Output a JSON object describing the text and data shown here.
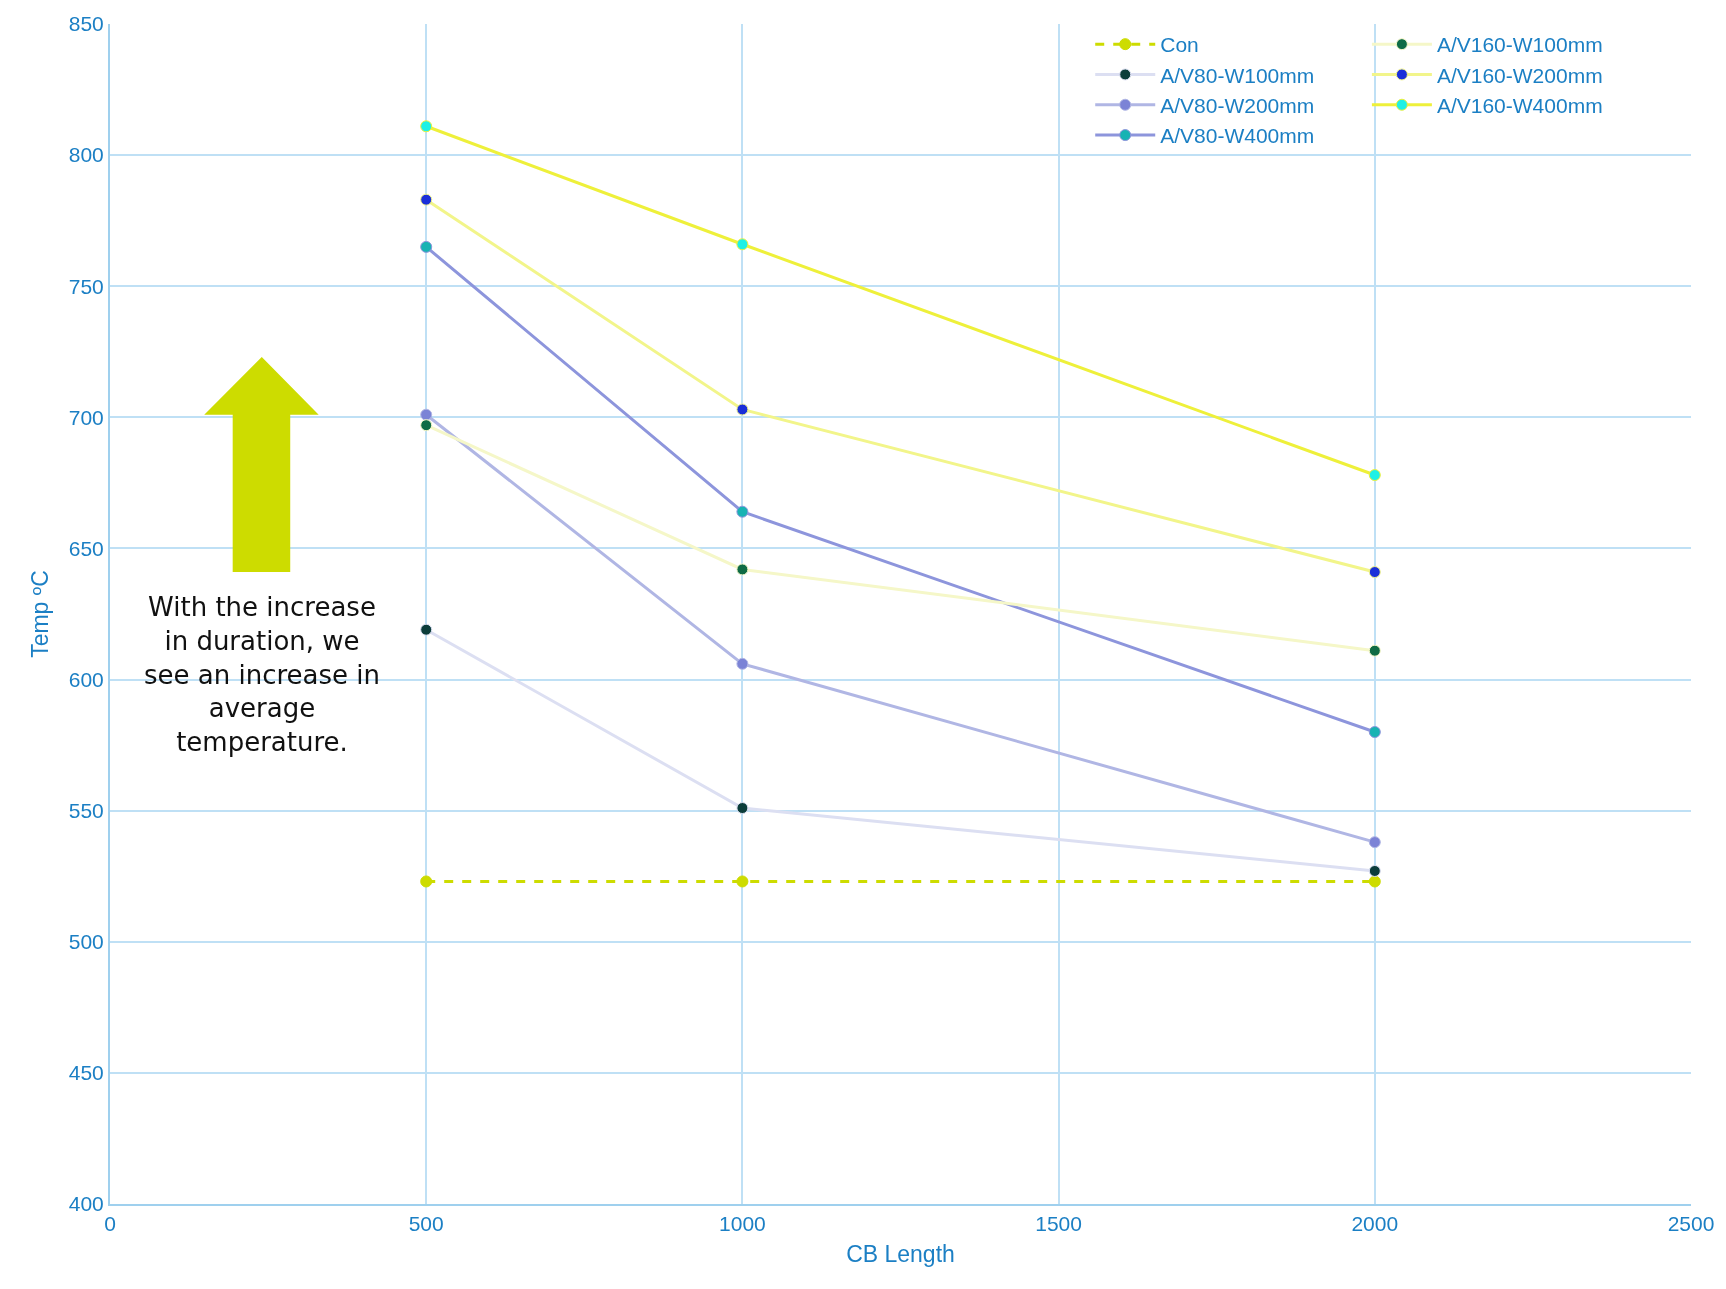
{
  "chart_data": {
    "type": "line",
    "xlabel": "CB Length",
    "ylabel": "Temp ºC",
    "xlim": [
      0,
      2500
    ],
    "xticks": [
      0,
      500,
      1000,
      1500,
      2000,
      2500
    ],
    "ylim": [
      400,
      850
    ],
    "yticks": [
      400,
      450,
      500,
      550,
      600,
      650,
      700,
      750,
      800,
      850
    ],
    "grid": true,
    "legend": "top right",
    "marker": "circle",
    "annotations": [
      "With the increase in duration, we see an increase in average temperature."
    ],
    "x": [
      500,
      1000,
      2000
    ],
    "series": [
      {
        "name": "Con",
        "color": "#cddc00",
        "colors": [
          "#cddc00",
          "#cddc00",
          "#cddc00"
        ],
        "line_style": "dashed",
        "values": [
          523,
          523,
          523
        ]
      },
      {
        "name": "A/V80-W100mm",
        "color": "#dcdff2",
        "colors": [
          "#0b3d3a",
          "#0b3d3a",
          "#0b3d3a"
        ],
        "values": [
          619,
          551,
          527
        ]
      },
      {
        "name": "A/V80-W200mm",
        "color": "#b0b6e4",
        "colors": [
          "#7b83d6",
          "#7b83d6",
          "#7b83d6"
        ],
        "values": [
          701,
          606,
          538
        ]
      },
      {
        "name": "A/V80-W400mm",
        "color": "#8d95dc",
        "colors": [
          "#17b3b3",
          "#17b3b3",
          "#17b3b3"
        ],
        "values": [
          765,
          664,
          580
        ]
      },
      {
        "name": "A/V160-W100mm",
        "color": "#f5f7c8",
        "colors": [
          "#0e6b45",
          "#0e6b45",
          "#0e6b45"
        ],
        "values": [
          697,
          642,
          611
        ]
      },
      {
        "name": "A/V160-W200mm",
        "color": "#f2f58a",
        "colors": [
          "#1a2fd9",
          "#1a2fd9",
          "#1a2fd9"
        ],
        "values": [
          783,
          703,
          641
        ]
      },
      {
        "name": "A/V160-W400mm",
        "color": "#eef03a",
        "colors": [
          "#1ef0e6",
          "#1ef0e6",
          "#1ef0e6"
        ],
        "values": [
          811,
          766,
          678
        ]
      }
    ]
  }
}
